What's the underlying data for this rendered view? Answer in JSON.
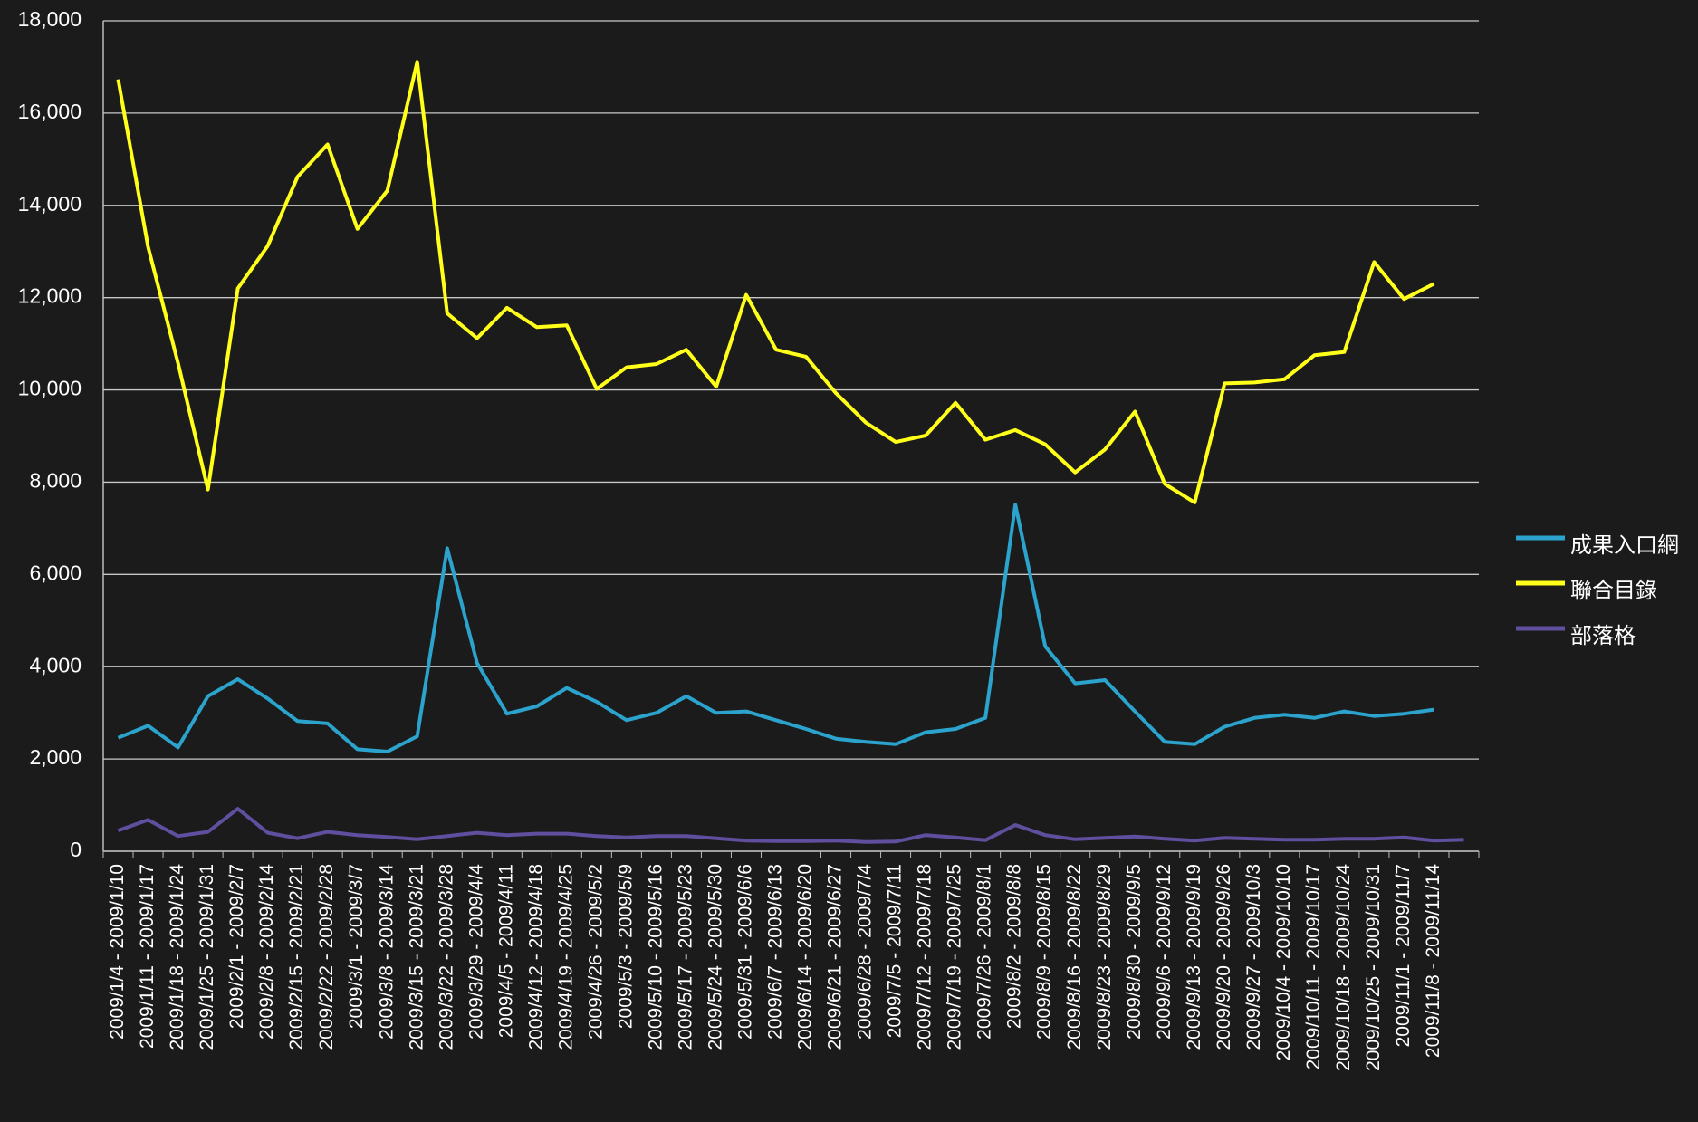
{
  "chart_data": {
    "type": "line",
    "categories": [
      "2009/1/4 - 2009/1/10",
      "2009/1/11 - 2009/1/17",
      "2009/1/18 - 2009/1/24",
      "2009/1/25 - 2009/1/31",
      "2009/2/1 - 2009/2/7",
      "2009/2/8 - 2009/2/14",
      "2009/2/15 - 2009/2/21",
      "2009/2/22 - 2009/2/28",
      "2009/3/1 - 2009/3/7",
      "2009/3/8 - 2009/3/14",
      "2009/3/15 - 2009/3/21",
      "2009/3/22 - 2009/3/28",
      "2009/3/29 - 2009/4/4",
      "2009/4/5 - 2009/4/11",
      "2009/4/12 - 2009/4/18",
      "2009/4/19 - 2009/4/25",
      "2009/4/26 - 2009/5/2",
      "2009/5/3 - 2009/5/9",
      "2009/5/10 - 2009/5/16",
      "2009/5/17 - 2009/5/23",
      "2009/5/24 - 2009/5/30",
      "2009/5/31 - 2009/6/6",
      "2009/6/7 - 2009/6/13",
      "2009/6/14 - 2009/6/20",
      "2009/6/21 - 2009/6/27",
      "2009/6/28 - 2009/7/4",
      "2009/7/5 - 2009/7/11",
      "2009/7/12 - 2009/7/18",
      "2009/7/19 - 2009/7/25",
      "2009/7/26 - 2009/8/1",
      "2009/8/2 - 2009/8/8",
      "2009/8/9 - 2009/8/15",
      "2009/8/16 - 2009/8/22",
      "2009/8/23 - 2009/8/29",
      "2009/8/30 - 2009/9/5",
      "2009/9/6 - 2009/9/12",
      "2009/9/13 - 2009/9/19",
      "2009/9/20 - 2009/9/26",
      "2009/9/27 - 2009/10/3",
      "2009/10/4 - 2009/10/10",
      "2009/10/11 - 2009/10/17",
      "2009/10/18 - 2009/10/24",
      "2009/10/25 - 2009/10/31",
      "2009/11/1 - 2009/11/7",
      "2009/11/8 - 2009/11/14",
      null
    ],
    "series": [
      {
        "name": "成果入口網",
        "color": "#2ba3cc",
        "values": [
          2460,
          2720,
          2250,
          3360,
          3730,
          3310,
          2820,
          2770,
          2210,
          2160,
          2490,
          6570,
          4080,
          2980,
          3140,
          3540,
          3240,
          2840,
          3000,
          3360,
          3000,
          3030,
          2840,
          2650,
          2440,
          2370,
          2320,
          2580,
          2650,
          2890,
          7510,
          4440,
          3640,
          3710,
          3030,
          2370,
          2320,
          2700,
          2890,
          2960,
          2890,
          3030,
          2930,
          2980,
          3070,
          null
        ]
      },
      {
        "name": "聯合目錄",
        "color": "#ffff1a",
        "values": [
          16730,
          13100,
          10580,
          7840,
          12200,
          13120,
          14620,
          15320,
          13490,
          14320,
          17110,
          11660,
          11120,
          11780,
          11360,
          11400,
          10020,
          10490,
          10560,
          10870,
          10070,
          12060,
          10870,
          10720,
          9930,
          9290,
          8870,
          9010,
          9720,
          8920,
          9130,
          8820,
          8210,
          8710,
          9530,
          7960,
          7560,
          10140,
          10160,
          10230,
          10750,
          10820,
          12770,
          11970,
          12300,
          null
        ]
      },
      {
        "name": "部落格",
        "color": "#5f4f9e",
        "values": [
          450,
          680,
          330,
          420,
          920,
          400,
          280,
          420,
          350,
          310,
          260,
          330,
          400,
          350,
          380,
          380,
          330,
          300,
          330,
          330,
          280,
          230,
          220,
          220,
          230,
          200,
          210,
          350,
          300,
          240,
          570,
          350,
          260,
          290,
          320,
          270,
          230,
          290,
          270,
          250,
          250,
          270,
          270,
          300,
          230,
          250
        ]
      }
    ],
    "ylim": [
      0,
      18000
    ],
    "yticks": [
      0,
      {
        "value": 2000,
        "label": "2,000"
      },
      {
        "value": 4000,
        "label": "4,000"
      },
      {
        "value": 6000,
        "label": "6,000"
      },
      {
        "value": 8000,
        "label": "8,000"
      },
      {
        "value": 10000,
        "label": "10,000"
      },
      {
        "value": 12000,
        "label": "12,000"
      },
      {
        "value": 14000,
        "label": "14,000"
      },
      {
        "value": 16000,
        "label": "16,000"
      },
      {
        "value": 18000,
        "label": "18,000"
      }
    ],
    "grid": true
  }
}
